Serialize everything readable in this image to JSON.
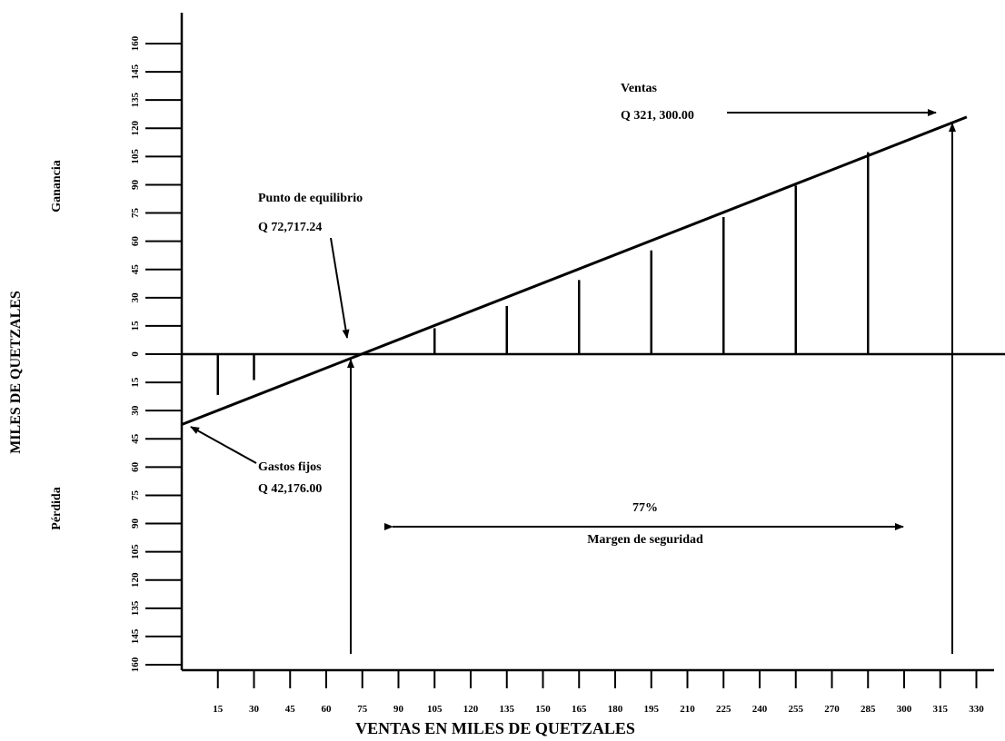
{
  "chart_data": {
    "type": "line",
    "title": "",
    "xlabel": "VENTAS EN MILES DE QUETZALES",
    "ylabel": "MILES DE QUETZALES",
    "ylabel_top": "Ganancia",
    "ylabel_bottom": "Pérdida",
    "xlim": [
      0,
      337
    ],
    "ylim": [
      -160,
      160
    ],
    "x_ticks": [
      15,
      30,
      45,
      60,
      75,
      90,
      105,
      120,
      135,
      150,
      165,
      180,
      195,
      210,
      225,
      240,
      255,
      270,
      285,
      300,
      315,
      330
    ],
    "y_ticks": [
      -160,
      -145,
      -135,
      -120,
      -105,
      -90,
      -75,
      -60,
      -45,
      -30,
      -15,
      0,
      15,
      30,
      45,
      60,
      75,
      90,
      105,
      120,
      135,
      145,
      160
    ],
    "grid": false,
    "series": [
      {
        "x": [
          0,
          326
        ],
        "y": [
          -38,
          128
        ]
      }
    ],
    "profit_loss_bars": [
      {
        "x": 15,
        "y": -22
      },
      {
        "x": 30,
        "y": -14
      },
      {
        "x": 105,
        "y": 14
      },
      {
        "x": 135,
        "y": 26
      },
      {
        "x": 165,
        "y": 40
      },
      {
        "x": 195,
        "y": 56
      },
      {
        "x": 225,
        "y": 74
      },
      {
        "x": 255,
        "y": 91
      },
      {
        "x": 285,
        "y": 109
      }
    ],
    "annotations": {
      "ventas_label": "Ventas",
      "ventas_value": "Q 321, 300.00",
      "equilibrio_label": "Punto de equilibrio",
      "equilibrio_value": "Q 72,717.24",
      "gastos_label": "Gastos fijos",
      "gastos_value": "Q 42,176.00",
      "margen_pct": "77%",
      "margen_label": "Margen de seguridad"
    }
  }
}
